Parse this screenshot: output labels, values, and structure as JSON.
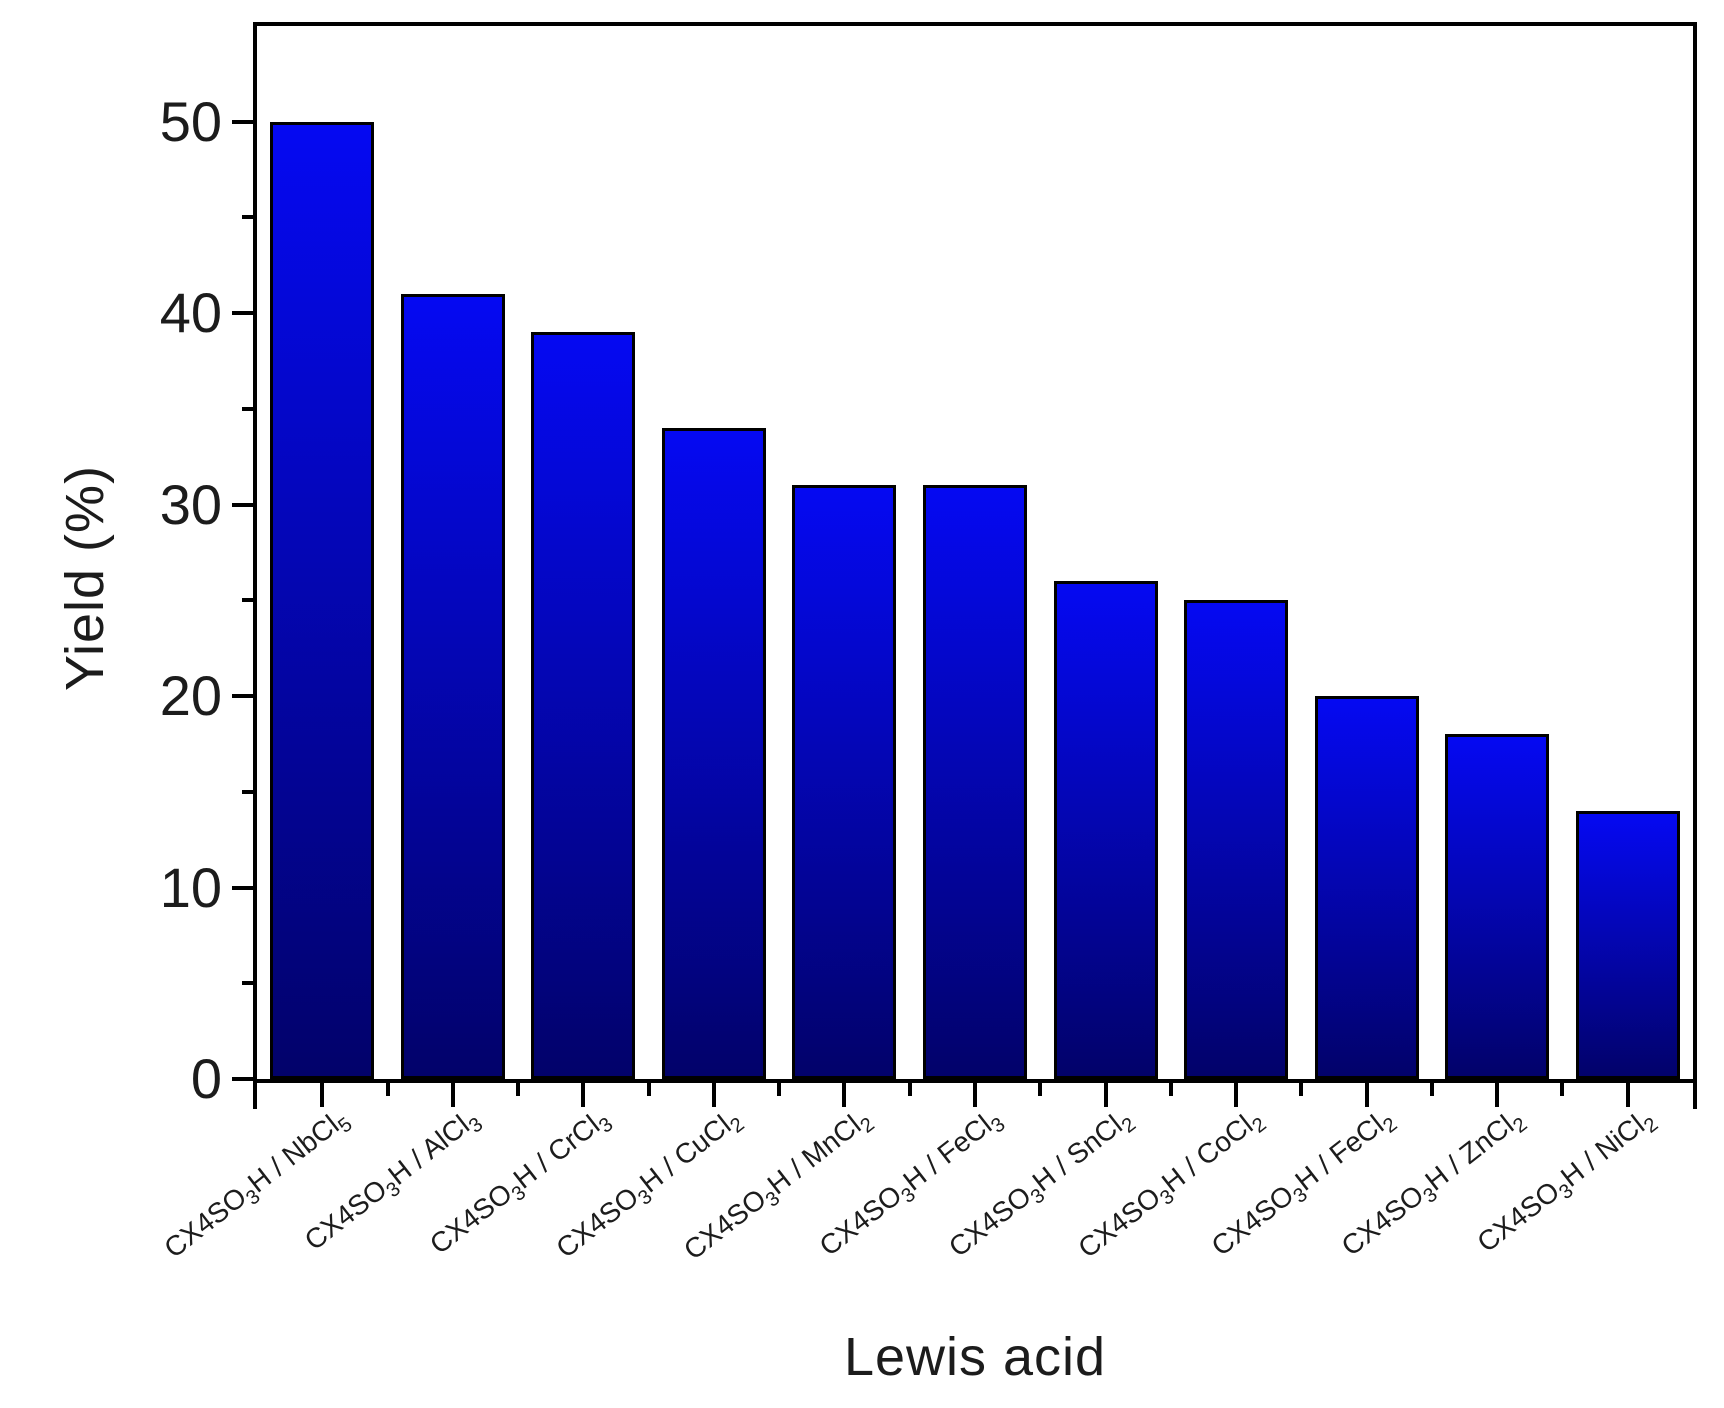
{
  "figure": {
    "background": "#ffffff"
  },
  "chart_data": {
    "type": "bar",
    "title": "",
    "xlabel": "Lewis acid",
    "ylabel": "Yield (%)",
    "categories": [
      "CX4SO~3~H / NbCl~5~",
      "CX4SO~3~H / AlCl~3~",
      "CX4SO~3~H / CrCl~3~",
      "CX4SO~3~H / CuCl~2~",
      "CX4SO~3~H / MnCl~2~",
      "CX4SO~3~H / FeCl~3~",
      "CX4SO~3~H / SnCl~2~",
      "CX4SO~3~H / CoCl~2~",
      "CX4SO~3~H / FeCl~2~",
      "CX4SO~3~H / ZnCl~2~",
      "CX4SO~3~H / NiCl~2~"
    ],
    "values": [
      50,
      41,
      39,
      34,
      31,
      31,
      26,
      25,
      20,
      18,
      14
    ],
    "ylim": [
      0,
      55
    ],
    "y_major_ticks": [
      0,
      10,
      20,
      30,
      40,
      50
    ],
    "y_minor_ticks": [
      5,
      15,
      25,
      35,
      45
    ],
    "grid": false,
    "legend": false,
    "bar_gradient_top": "#0509f2",
    "bar_gradient_bottom": "#02026a",
    "bar_border_color": "#000000",
    "frame_color": "#000000",
    "text_color": "#1c1c1c",
    "category_label_rotation_deg": -38
  }
}
